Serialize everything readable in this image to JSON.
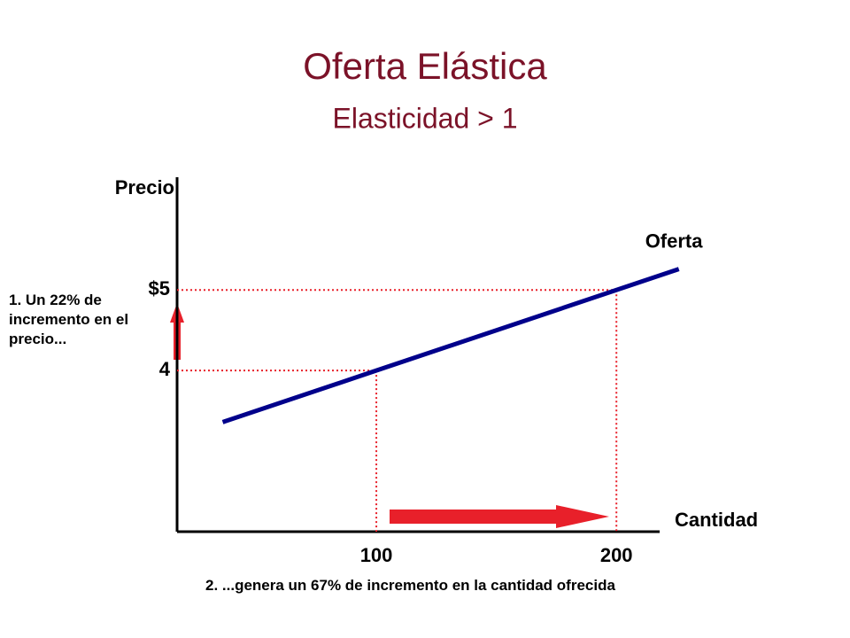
{
  "chart_data": {
    "type": "line",
    "title": "Oferta Elástica",
    "subtitle": "Elasticidad > 1",
    "x_label": "Cantidad",
    "y_label": "Precio",
    "annotations": [
      "1. Un 22% de incremento en el precio...",
      "2. ...genera un 67% de incremento en la cantidad ofrecida"
    ],
    "x": [
      36,
      100,
      200,
      226
    ],
    "series": [
      {
        "name": "Oferta",
        "color": "#00008b",
        "values": [
          3.36,
          4,
          5,
          5.26
        ]
      }
    ],
    "xlim": [
      17,
      218
    ],
    "ylim": [
      2,
      6.4
    ],
    "xticks": [
      100,
      200
    ],
    "yticks": [
      4,
      {
        "value": 5,
        "label": "$5"
      }
    ],
    "guide_color": "#e8202a"
  }
}
